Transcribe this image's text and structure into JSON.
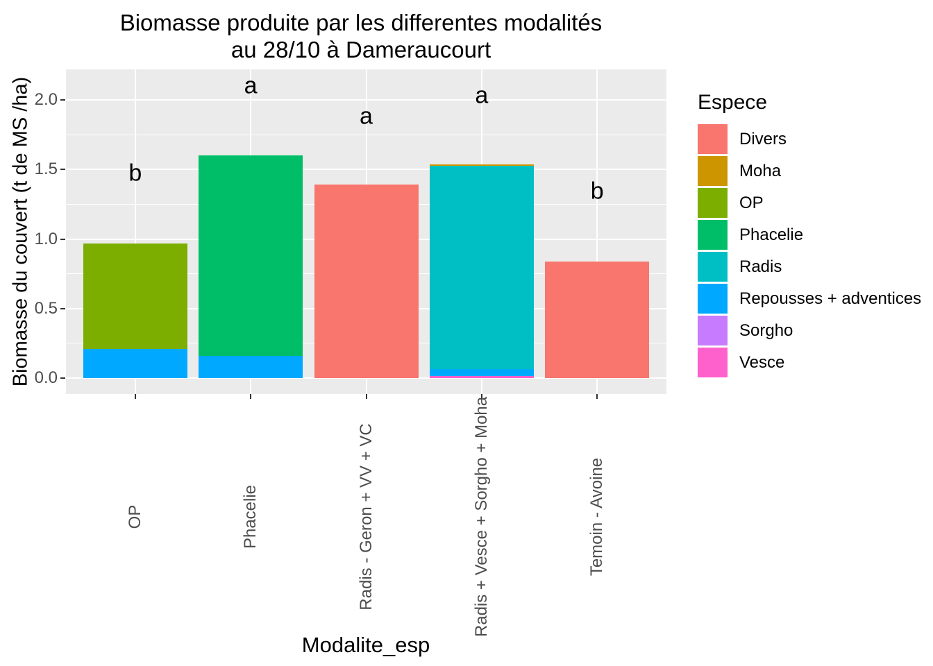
{
  "title": {
    "line1": "Biomasse produite par les differentes modalités",
    "line2": "au 28/10 à Dameraucourt"
  },
  "axes": {
    "y_title": "Biomasse du couvert (t de MS /ha)",
    "x_title": "Modalite_esp"
  },
  "legend": {
    "title": "Espece",
    "items": [
      {
        "label": "Divers",
        "color": "#F8766D"
      },
      {
        "label": "Moha",
        "color": "#CD9600"
      },
      {
        "label": "OP",
        "color": "#7CAE00"
      },
      {
        "label": "Phacelie",
        "color": "#00BE67"
      },
      {
        "label": "Radis",
        "color": "#00BFC4"
      },
      {
        "label": "Repousses + adventices",
        "color": "#00A9FF"
      },
      {
        "label": "Sorgho",
        "color": "#C77CFF"
      },
      {
        "label": "Vesce",
        "color": "#FF61CC"
      }
    ]
  },
  "chart_data": {
    "type": "bar",
    "stacked": true,
    "title": "Biomasse produite par les differentes modalités au 28/10 à Dameraucourt",
    "xlabel": "Modalite_esp",
    "ylabel": "Biomasse du couvert (t de MS /ha)",
    "ylim": [
      -0.11,
      2.22
    ],
    "y_major_ticks": [
      0,
      0.5,
      1,
      1.5,
      2
    ],
    "y_tick_labels": [
      "0.0",
      "0.5",
      "1.0",
      "1.5",
      "2.0"
    ],
    "y_minor_ticks": [
      0.25,
      0.75,
      1.25,
      1.75
    ],
    "grid": true,
    "legend_position": "right",
    "panel_background": "#EBEBEB",
    "gridline_color": "#FFFFFF",
    "categories": [
      "OP",
      "Phacelie",
      "Radis - Geron + VV + VC",
      "Radis + Vesce + Sorgho + Moha",
      "Temoin - Avoine"
    ],
    "series": [
      {
        "name": "Divers",
        "color": "#F8766D",
        "values": [
          0,
          0,
          1.39,
          0,
          0.84
        ]
      },
      {
        "name": "Moha",
        "color": "#CD9600",
        "values": [
          0,
          0,
          0,
          0.01,
          0
        ]
      },
      {
        "name": "OP",
        "color": "#7CAE00",
        "values": [
          0.76,
          0,
          0,
          0,
          0
        ]
      },
      {
        "name": "Phacelie",
        "color": "#00BE67",
        "values": [
          0,
          1.44,
          0,
          0,
          0
        ]
      },
      {
        "name": "Radis",
        "color": "#00BFC4",
        "values": [
          0,
          0,
          0,
          1.46,
          0
        ]
      },
      {
        "name": "Repousses + adventices",
        "color": "#00A9FF",
        "values": [
          0.21,
          0.16,
          0,
          0.05,
          0
        ]
      },
      {
        "name": "Sorgho",
        "color": "#C77CFF",
        "values": [
          0,
          0,
          0,
          0,
          0
        ]
      },
      {
        "name": "Vesce",
        "color": "#FF61CC",
        "values": [
          0,
          0,
          0,
          0.015,
          0
        ]
      }
    ],
    "stack_order_bottom_to_top": [
      "Vesce",
      "Sorgho",
      "Repousses + adventices",
      "Radis",
      "Phacelie",
      "OP",
      "Moha",
      "Divers"
    ],
    "totals": [
      0.97,
      1.6,
      1.39,
      1.535,
      0.84
    ],
    "annotations": [
      {
        "text": "b",
        "category": "OP",
        "y": 1.47
      },
      {
        "text": "a",
        "category": "Phacelie",
        "y": 2.1
      },
      {
        "text": "a",
        "category": "Radis - Geron + VV + VC",
        "y": 1.88
      },
      {
        "text": "a",
        "category": "Radis + Vesce + Sorgho + Moha",
        "y": 2.03
      },
      {
        "text": "b",
        "category": "Temoin - Avoine",
        "y": 1.34
      }
    ]
  }
}
